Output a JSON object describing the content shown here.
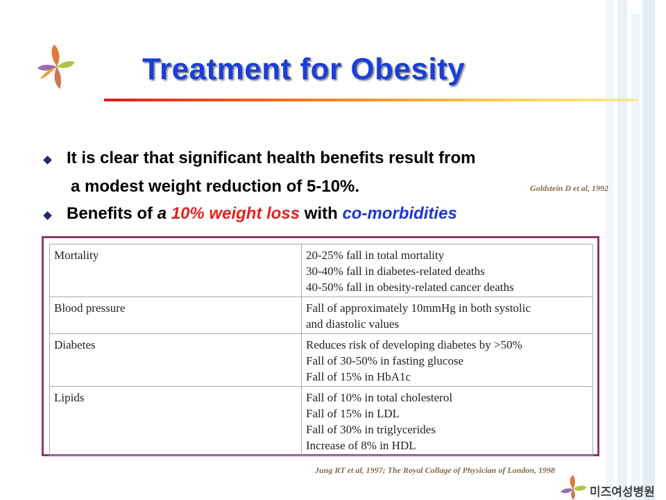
{
  "title": "Treatment for Obesity",
  "bullets": [
    {
      "line1": "It is clear that significant health benefits result from",
      "line2": "a modest weight reduction of 5-10%."
    },
    {
      "pre": "Benefits of ",
      "a": "a",
      "sp": " ",
      "highlight": "10% weight loss",
      "mid": " with ",
      "highlight2": "co-morbidities"
    }
  ],
  "citation_top": "Goldstein D et al, 1992",
  "table": {
    "rows": [
      {
        "category": "Mortality",
        "effects": [
          "20-25% fall in total mortality",
          "30-40% fall in diabetes-related deaths",
          "40-50% fall in obesity-related cancer deaths"
        ]
      },
      {
        "category": "Blood pressure",
        "effects": [
          "Fall of approximately 10mmHg in both systolic",
          "and diastolic values"
        ]
      },
      {
        "category": "Diabetes",
        "effects": [
          "Reduces risk of developing diabetes by >50%",
          "Fall of 30-50% in fasting glucose",
          "Fall of 15% in HbA1c"
        ]
      },
      {
        "category": "Lipids",
        "effects": [
          "Fall of 10% in total cholesterol",
          "Fall of 15% in LDL",
          "Fall of 30% in triglycerides",
          "Increase of 8% in HDL"
        ]
      }
    ]
  },
  "citation_bottom": "Jung RT et al, 1997; The Royal Collage of Physician of London, 1998",
  "footer": {
    "hospital_name": "미즈여성병원"
  },
  "colors": {
    "title": "#1a3fd6",
    "highlight_red": "#e62121",
    "highlight_blue": "#1f36d6",
    "table_border": "#8a3a6c"
  }
}
